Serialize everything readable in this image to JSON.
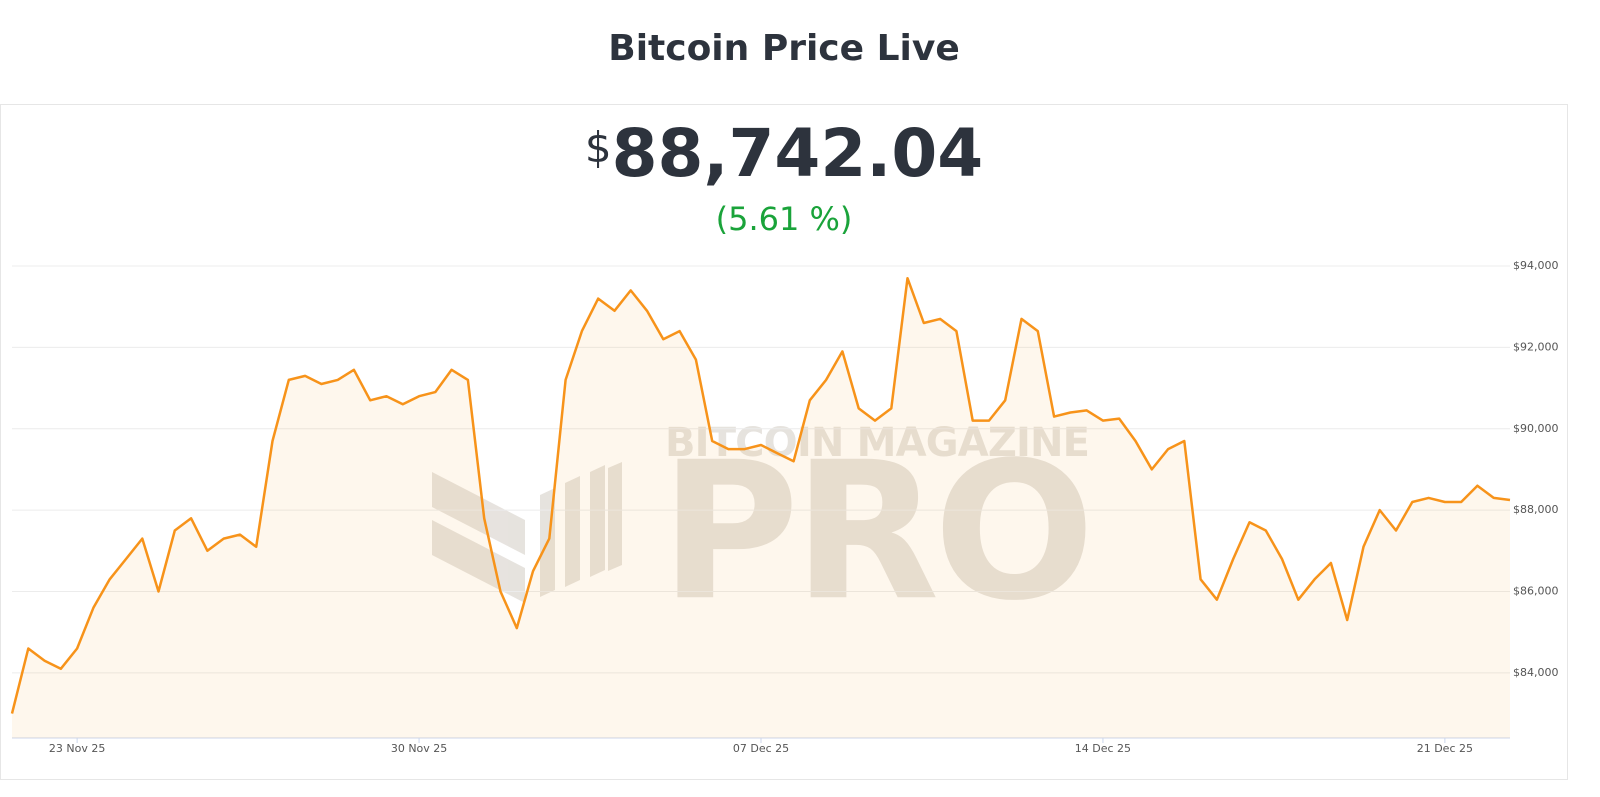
{
  "header": {
    "title": "Bitcoin Price Live",
    "currency_symbol": "$",
    "price": "88,742.04",
    "change": "(5.61 %)"
  },
  "watermark": {
    "line1": "BITCOIN MAGAZINE",
    "line2": "PRO"
  },
  "chart_data": {
    "type": "line",
    "series": [
      {
        "name": "Bitcoin Price",
        "color": "#f7931a",
        "values": [
          83000,
          84600,
          84300,
          84100,
          84600,
          85600,
          86300,
          86800,
          87300,
          86000,
          87500,
          87800,
          87000,
          87300,
          87400,
          87100,
          89700,
          91200,
          91300,
          91100,
          91200,
          91450,
          90700,
          90800,
          90600,
          90800,
          90900,
          91450,
          91200,
          87800,
          86000,
          85100,
          86500,
          87300,
          91200,
          92400,
          93200,
          92900,
          93400,
          92900,
          92200,
          92400,
          91700,
          89700,
          89500,
          89500,
          89600,
          89400,
          89200,
          90700,
          91200,
          91900,
          90500,
          90200,
          90500,
          93700,
          92600,
          92700,
          92400,
          90200,
          90200,
          90700,
          92700,
          92400,
          90300,
          90400,
          90450,
          90200,
          90250,
          89700,
          89000,
          89500,
          89700,
          86300,
          85800,
          86800,
          87700,
          87500,
          86800,
          85800,
          86300,
          86700,
          85300,
          87100,
          88000,
          87500,
          88200,
          88300,
          88200,
          88200,
          88600,
          88300,
          88250
        ]
      }
    ],
    "xlim": [
      0,
      92
    ],
    "xticks": [
      {
        "value": 4,
        "label": "23 Nov 25"
      },
      {
        "value": 25,
        "label": "30 Nov 25"
      },
      {
        "value": 46,
        "label": "07 Dec 25"
      },
      {
        "value": 67,
        "label": "14 Dec 25"
      },
      {
        "value": 88,
        "label": "21 Dec 25"
      }
    ],
    "ylim": [
      82400,
      94000
    ],
    "yticks": [
      {
        "value": 84000,
        "label": "$84,000"
      },
      {
        "value": 86000,
        "label": "$86,000"
      },
      {
        "value": 88000,
        "label": "$88,000"
      },
      {
        "value": 90000,
        "label": "$90,000"
      },
      {
        "value": 92000,
        "label": "$92,000"
      },
      {
        "value": 94000,
        "label": "$94,000"
      }
    ],
    "grid": true
  }
}
